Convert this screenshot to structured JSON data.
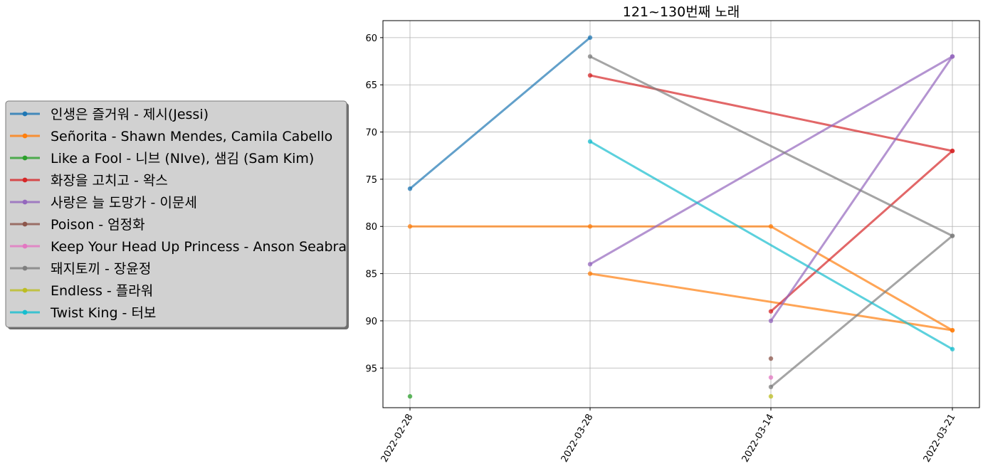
{
  "chart_data": {
    "type": "line",
    "title": "121~130번째 노래",
    "xlabel": "",
    "ylabel": "",
    "categories": [
      "2022-02-28",
      "2022-03-28",
      "2022-03-14",
      "2022-03-21"
    ],
    "y_ticks": [
      60,
      65,
      70,
      75,
      80,
      85,
      90,
      95
    ],
    "ylim": [
      99.2,
      58.2
    ],
    "y_inverted": true,
    "grid": true,
    "legend_position": "left",
    "series": [
      {
        "name": "인생은 즐거워 - 제시(Jessi)",
        "color": "#1f77b4",
        "values": [
          76,
          60,
          null,
          null
        ]
      },
      {
        "name": "Señorita - Shawn Mendes, Camila Cabello",
        "color": "#ff7f0e",
        "values": [
          80,
          80,
          80,
          91
        ]
      },
      {
        "name": "Señorita - Shawn Mendes, Camila Cabello",
        "color": "#ff7f0e",
        "values": [
          null,
          85,
          null,
          91
        ]
      },
      {
        "name": "Like a Fool - 니브 (NIve), 샘김 (Sam Kim)",
        "color": "#2ca02c",
        "values": [
          98,
          null,
          null,
          null
        ]
      },
      {
        "name": "화장을 고치고 - 왁스",
        "color": "#d62728",
        "values": [
          null,
          64,
          null,
          72
        ]
      },
      {
        "name": "화장을 고치고 - 왁스",
        "color": "#d62728",
        "values": [
          null,
          null,
          89,
          72
        ]
      },
      {
        "name": "사랑은 늘 도망가 - 이문세",
        "color": "#9467bd",
        "values": [
          null,
          84,
          null,
          62
        ]
      },
      {
        "name": "사랑은 늘 도망가 - 이문세",
        "color": "#9467bd",
        "values": [
          null,
          null,
          90,
          62
        ]
      },
      {
        "name": "Poison - 엄정화",
        "color": "#8c564b",
        "values": [
          null,
          null,
          94,
          null
        ]
      },
      {
        "name": "Keep Your Head Up Princess - Anson Seabra",
        "color": "#e377c2",
        "values": [
          null,
          null,
          96,
          null
        ]
      },
      {
        "name": "돼지토끼 - 장윤정",
        "color": "#7f7f7f",
        "values": [
          null,
          62,
          null,
          81
        ]
      },
      {
        "name": "돼지토끼 - 장윤정",
        "color": "#7f7f7f",
        "values": [
          null,
          null,
          97,
          81
        ]
      },
      {
        "name": "Endless - 플라워",
        "color": "#bcbd22",
        "values": [
          null,
          null,
          98,
          null
        ]
      },
      {
        "name": "Twist King - 터보",
        "color": "#17becf",
        "values": [
          null,
          71,
          null,
          93
        ]
      }
    ],
    "legend": [
      {
        "label": "인생은 즐거워 - 제시(Jessi)",
        "color": "#1f77b4"
      },
      {
        "label": "Señorita - Shawn Mendes, Camila Cabello",
        "color": "#ff7f0e"
      },
      {
        "label": "Like a Fool - 니브 (NIve), 샘김 (Sam Kim)",
        "color": "#2ca02c"
      },
      {
        "label": "화장을 고치고 - 왁스",
        "color": "#d62728"
      },
      {
        "label": "사랑은 늘 도망가 - 이문세",
        "color": "#9467bd"
      },
      {
        "label": "Poison - 엄정화",
        "color": "#8c564b"
      },
      {
        "label": "Keep Your Head Up Princess - Anson Seabra",
        "color": "#e377c2"
      },
      {
        "label": "돼지토끼 - 장윤정",
        "color": "#7f7f7f"
      },
      {
        "label": "Endless - 플라워",
        "color": "#bcbd22"
      },
      {
        "label": "Twist King - 터보",
        "color": "#17becf"
      }
    ]
  }
}
